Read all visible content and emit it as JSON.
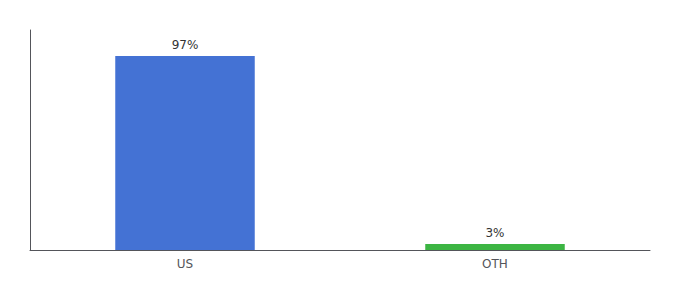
{
  "chart_data": {
    "type": "bar",
    "categories": [
      "US",
      "OTH"
    ],
    "values": [
      97,
      3
    ],
    "value_labels": [
      "97%",
      "3%"
    ],
    "data_labels": true,
    "colors": [
      "#4472d4",
      "#3cb543"
    ],
    "ylim": [
      0,
      110
    ],
    "yticks": [],
    "tick_labels": "x",
    "grid": false
  }
}
